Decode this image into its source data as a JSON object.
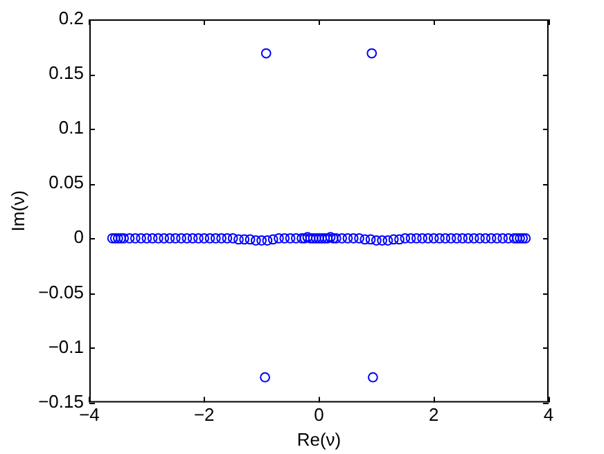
{
  "chart_data": {
    "type": "scatter",
    "xlabel": "Re(ν)",
    "ylabel": "Im(ν)",
    "xlim": [
      -4,
      4
    ],
    "xticks": [
      {
        "value": -4,
        "label": "−4"
      },
      {
        "value": -2,
        "label": "−2"
      },
      0,
      2,
      4
    ],
    "ylim": [
      -0.15,
      0.2
    ],
    "yticks": [
      {
        "value": -0.15,
        "label": "−0.15"
      },
      {
        "value": -0.1,
        "label": "−0.1"
      },
      {
        "value": -0.05,
        "label": "−0.05"
      },
      0,
      0.05,
      0.1,
      0.15,
      0.2
    ],
    "grid": false,
    "legend": false,
    "marker": "circle",
    "series": [
      {
        "color": "#0000ff",
        "x": [
          -3.6,
          -3.55,
          -3.5,
          -3.45,
          -3.4,
          -3.3,
          -3.2,
          -3.1,
          -3.0,
          -2.9,
          -2.8,
          -2.7,
          -2.6,
          -2.5,
          -2.4,
          -2.3,
          -2.2,
          -2.1,
          -2.0,
          -1.9,
          -1.8,
          -1.7,
          -1.6,
          -1.5,
          -1.4,
          -1.3,
          -1.2,
          -1.1,
          -1.0,
          -0.9,
          -0.8,
          -0.7,
          -0.6,
          -0.5,
          -0.4,
          -0.3,
          -0.25,
          -0.2,
          -0.15,
          -0.1,
          -0.05,
          0,
          0.05,
          0.1,
          0.15,
          0.2,
          0.25,
          0.3,
          0.4,
          0.5,
          0.6,
          0.7,
          0.8,
          0.9,
          1.0,
          1.1,
          1.2,
          1.3,
          1.4,
          1.5,
          1.6,
          1.7,
          1.8,
          1.9,
          2.0,
          2.1,
          2.2,
          2.3,
          2.4,
          2.5,
          2.6,
          2.7,
          2.8,
          2.9,
          3.0,
          3.1,
          3.2,
          3.3,
          3.4,
          3.45,
          3.5,
          3.55,
          3.6
        ],
        "values": [
          0,
          0,
          0,
          0,
          0,
          0,
          0,
          0,
          0,
          0,
          0,
          0,
          0,
          0,
          0,
          0,
          0,
          0,
          0,
          0,
          0,
          0,
          0,
          0,
          -0.001,
          -0.001,
          -0.001,
          -0.002,
          -0.002,
          -0.002,
          -0.001,
          0,
          0,
          0,
          0,
          0,
          0,
          0.001,
          0,
          0,
          0,
          0,
          0,
          0,
          0,
          0.001,
          0,
          0,
          0,
          0,
          0,
          0,
          -0.001,
          -0.001,
          -0.002,
          -0.002,
          -0.002,
          -0.001,
          -0.001,
          0,
          0,
          0,
          0,
          0,
          0,
          0,
          0,
          0,
          0,
          0,
          0,
          0,
          0,
          0,
          0,
          0,
          0,
          0,
          0,
          0,
          0,
          0,
          0
        ]
      },
      {
        "color": "#0000ff",
        "x": [
          -0.92,
          0.92,
          -0.94,
          0.94
        ],
        "values": [
          0.169,
          0.169,
          -0.127,
          -0.127
        ]
      }
    ]
  }
}
